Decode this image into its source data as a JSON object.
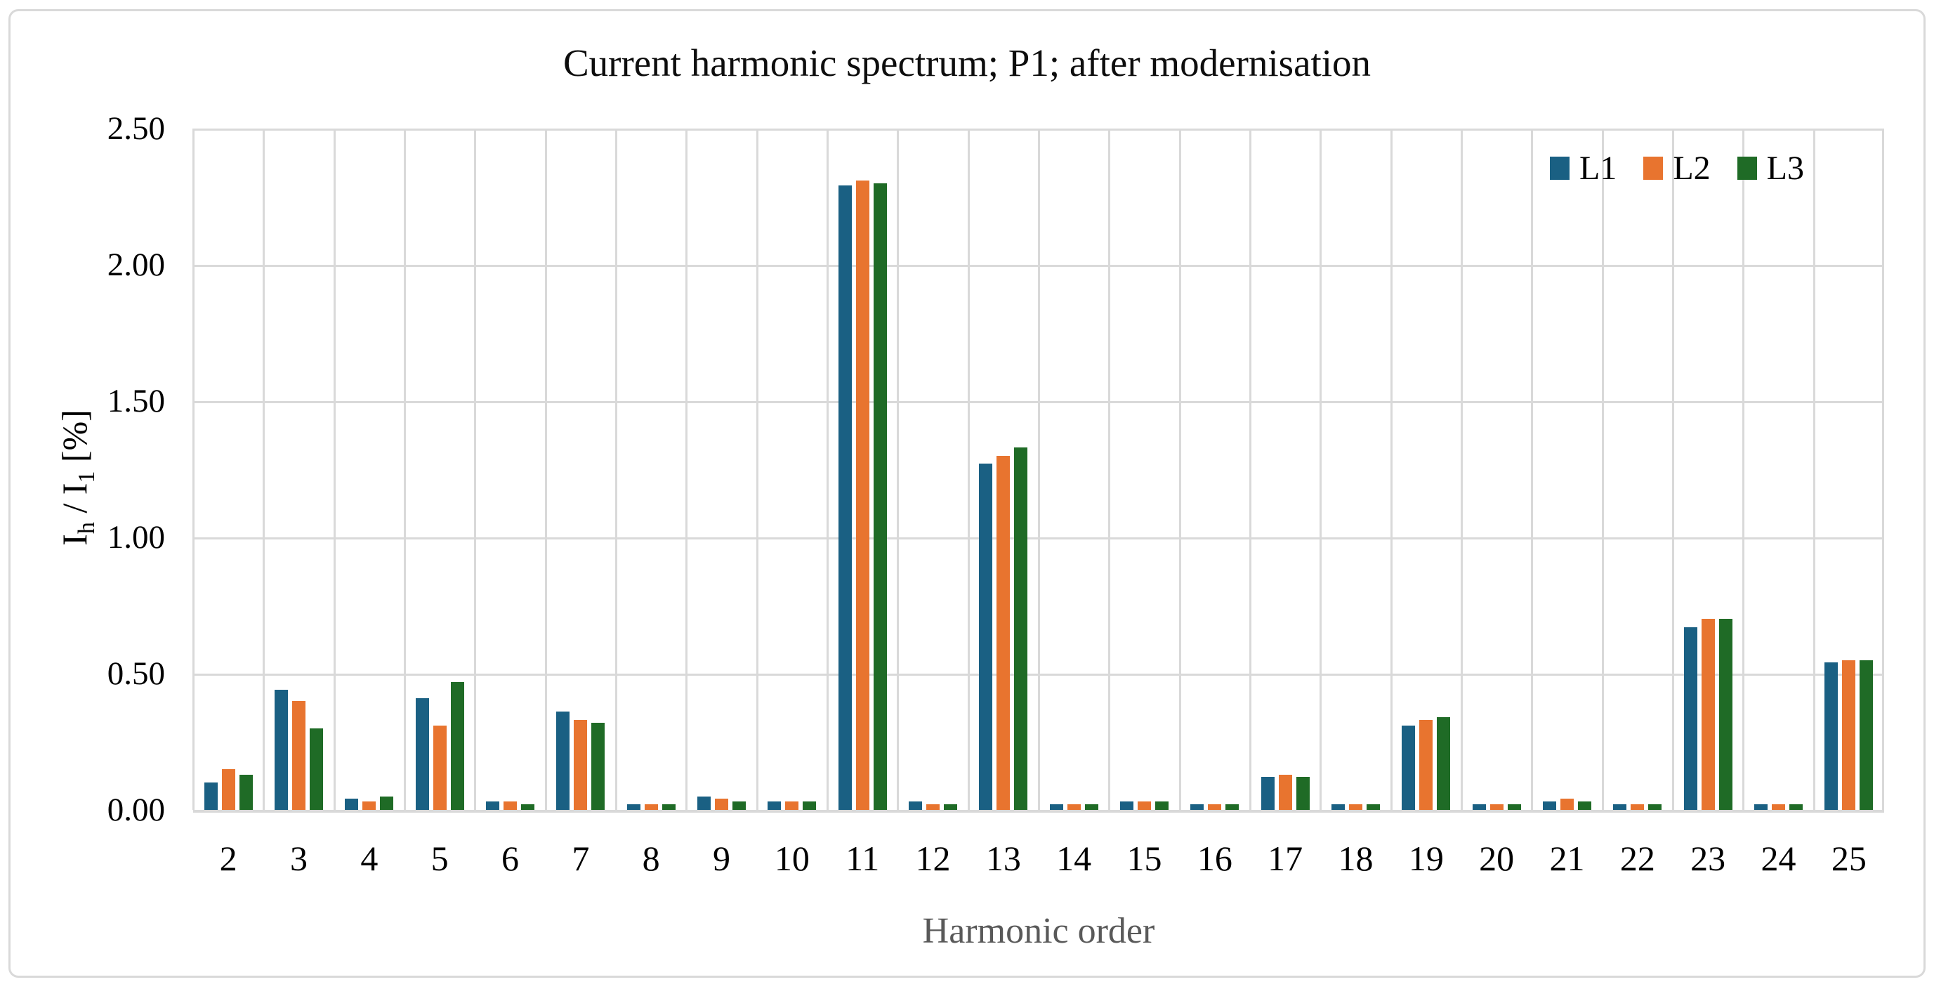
{
  "figure": {
    "background": "#ffffff",
    "border_color": "#d9d9d9"
  },
  "chart_data": {
    "type": "bar",
    "title": "Current harmonic spectrum; P1; after modernisation",
    "xlabel": "Harmonic order",
    "ylabel": "I_h / I_1 [%]",
    "ylabel_parts": {
      "base1": "I",
      "sub1": "h",
      "base2": " / I",
      "sub2": "1",
      "base3": " [%]"
    },
    "categories": [
      2,
      3,
      4,
      5,
      6,
      7,
      8,
      9,
      10,
      11,
      12,
      13,
      14,
      15,
      16,
      17,
      18,
      19,
      20,
      21,
      22,
      23,
      24,
      25
    ],
    "series": [
      {
        "name": "L1",
        "color": "#1a6083",
        "values": [
          0.1,
          0.44,
          0.04,
          0.41,
          0.03,
          0.36,
          0.02,
          0.05,
          0.03,
          2.29,
          0.03,
          1.27,
          0.02,
          0.03,
          0.02,
          0.12,
          0.02,
          0.31,
          0.02,
          0.03,
          0.02,
          0.67,
          0.02,
          0.54
        ]
      },
      {
        "name": "L2",
        "color": "#e8742f",
        "values": [
          0.15,
          0.4,
          0.03,
          0.31,
          0.03,
          0.33,
          0.02,
          0.04,
          0.03,
          2.31,
          0.02,
          1.3,
          0.02,
          0.03,
          0.02,
          0.13,
          0.02,
          0.33,
          0.02,
          0.04,
          0.02,
          0.7,
          0.02,
          0.55
        ]
      },
      {
        "name": "L3",
        "color": "#1f6b26",
        "values": [
          0.13,
          0.3,
          0.05,
          0.47,
          0.02,
          0.32,
          0.02,
          0.03,
          0.03,
          2.3,
          0.02,
          1.33,
          0.02,
          0.03,
          0.02,
          0.12,
          0.02,
          0.34,
          0.02,
          0.03,
          0.02,
          0.7,
          0.02,
          0.55
        ]
      }
    ],
    "ylim": [
      0,
      2.5
    ],
    "y_ticks": [
      "2.50",
      "2.00",
      "1.50",
      "1.00",
      "0.50",
      "0.00"
    ],
    "grid": {
      "horizontal": true,
      "vertical": true,
      "color": "#d9d9d9"
    },
    "legend_position": "top-right",
    "axis_text_color": "#000000",
    "xlabel_color": "#595959"
  }
}
